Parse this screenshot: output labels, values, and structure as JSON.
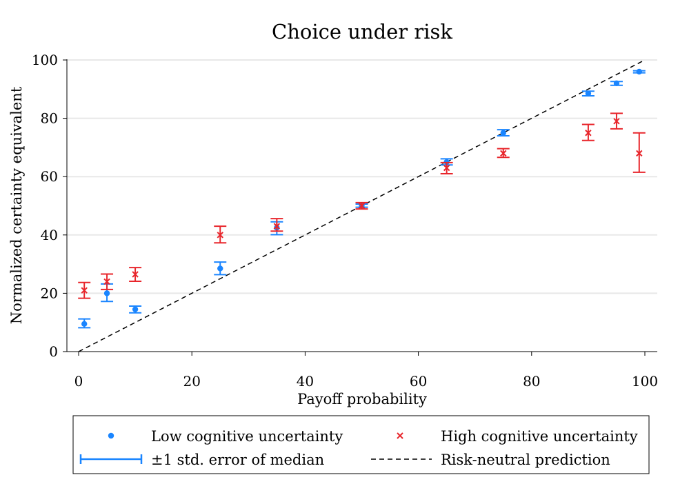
{
  "chart_data": {
    "type": "scatter",
    "title": "Choice under risk",
    "xlabel": "Payoff probability",
    "ylabel": "Normalized certainty equivalent",
    "xlim": [
      0,
      100
    ],
    "ylim": [
      0,
      100
    ],
    "x_ticks": [
      0,
      20,
      40,
      60,
      80,
      100
    ],
    "y_ticks": [
      0,
      20,
      40,
      60,
      80,
      100
    ],
    "grid": true,
    "legend_position": "bottom",
    "colors": {
      "low": "#1a85ff",
      "high": "#e8262c",
      "reference": "#000000"
    },
    "series": [
      {
        "name": "Low cognitive uncertainty",
        "marker": "dot",
        "points": [
          {
            "x": 1,
            "y": 9.5,
            "lo": 8.2,
            "hi": 11.2
          },
          {
            "x": 5,
            "y": 20,
            "lo": 17.2,
            "hi": 23.2
          },
          {
            "x": 10,
            "y": 14.5,
            "lo": 13.3,
            "hi": 15.6
          },
          {
            "x": 25,
            "y": 28.5,
            "lo": 26.4,
            "hi": 30.7
          },
          {
            "x": 35,
            "y": 42.5,
            "lo": 40.1,
            "hi": 44.5
          },
          {
            "x": 50,
            "y": 50,
            "lo": 49.5,
            "hi": 50.6
          },
          {
            "x": 65,
            "y": 65,
            "lo": 64.0,
            "hi": 66.1
          },
          {
            "x": 75,
            "y": 75,
            "lo": 74.0,
            "hi": 76.1
          },
          {
            "x": 90,
            "y": 88.5,
            "lo": 87.7,
            "hi": 89.3
          },
          {
            "x": 95,
            "y": 92,
            "lo": 91.3,
            "hi": 92.6
          },
          {
            "x": 99,
            "y": 96,
            "lo": 95.6,
            "hi": 96.3
          }
        ]
      },
      {
        "name": "High cognitive uncertainty",
        "marker": "x",
        "points": [
          {
            "x": 1,
            "y": 21,
            "lo": 18.3,
            "hi": 23.7
          },
          {
            "x": 5,
            "y": 24,
            "lo": 21.3,
            "hi": 26.6
          },
          {
            "x": 10,
            "y": 26.5,
            "lo": 24.1,
            "hi": 28.8
          },
          {
            "x": 25,
            "y": 40,
            "lo": 37.3,
            "hi": 43.0
          },
          {
            "x": 35,
            "y": 43,
            "lo": 41.3,
            "hi": 45.6
          },
          {
            "x": 50,
            "y": 50,
            "lo": 48.9,
            "hi": 51.1
          },
          {
            "x": 65,
            "y": 63,
            "lo": 61.0,
            "hi": 64.8
          },
          {
            "x": 75,
            "y": 68,
            "lo": 66.6,
            "hi": 69.6
          },
          {
            "x": 90,
            "y": 75,
            "lo": 72.4,
            "hi": 77.9
          },
          {
            "x": 95,
            "y": 79,
            "lo": 76.4,
            "hi": 81.7
          },
          {
            "x": 99,
            "y": 68,
            "lo": 61.5,
            "hi": 75.0
          }
        ]
      }
    ],
    "reference_line": {
      "name": "Risk-neutral prediction",
      "from": [
        0,
        0
      ],
      "to": [
        100,
        100
      ]
    },
    "legend": [
      {
        "key": "low",
        "label": "Low cognitive uncertainty"
      },
      {
        "key": "high",
        "label": "High cognitive uncertainty"
      },
      {
        "key": "errorbar",
        "label": "±1 std. error of median"
      },
      {
        "key": "reference",
        "label": "Risk-neutral prediction"
      }
    ]
  }
}
